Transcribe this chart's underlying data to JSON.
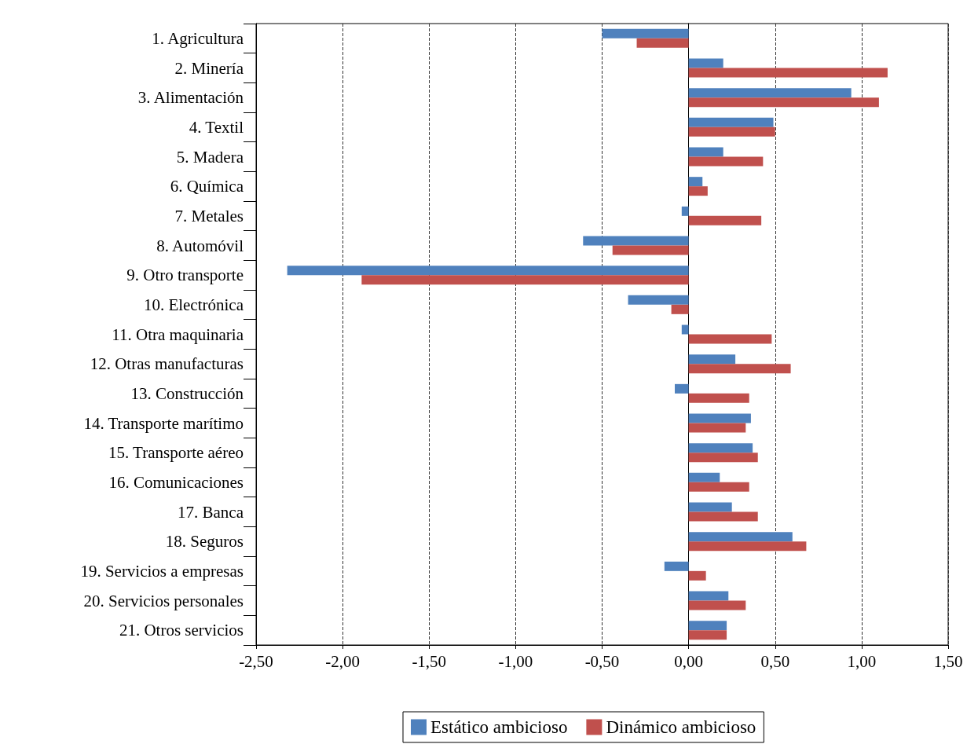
{
  "chart_data": {
    "type": "bar",
    "orientation": "horizontal",
    "categories": [
      "1. Agricultura",
      "2. Minería",
      "3. Alimentación",
      "4. Textil",
      "5. Madera",
      "6. Química",
      "7. Metales",
      "8. Automóvil",
      "9. Otro transporte",
      "10. Electrónica",
      "11. Otra maquinaria",
      "12. Otras manufacturas",
      "13. Construcción",
      "14. Transporte marítimo",
      "15. Transporte aéreo",
      "16. Comunicaciones",
      "17. Banca",
      "18. Seguros",
      "19. Servicios a empresas",
      "20. Servicios personales",
      "21. Otros servicios"
    ],
    "series": [
      {
        "name": "Estático ambicioso",
        "color": "#4f81bd",
        "values": [
          -0.5,
          0.2,
          0.94,
          0.49,
          0.2,
          0.08,
          -0.04,
          -0.61,
          -2.32,
          -0.35,
          -0.04,
          0.27,
          -0.08,
          0.36,
          0.37,
          0.18,
          0.25,
          0.6,
          -0.14,
          0.23,
          0.22
        ]
      },
      {
        "name": "Dinámico ambicioso",
        "color": "#c0504d",
        "values": [
          -0.3,
          1.15,
          1.1,
          0.5,
          0.43,
          0.11,
          0.42,
          -0.44,
          -1.89,
          -0.1,
          0.48,
          0.59,
          0.35,
          0.33,
          0.4,
          0.35,
          0.4,
          0.68,
          0.1,
          0.33,
          0.22
        ]
      }
    ],
    "xlim": [
      -2.5,
      1.5
    ],
    "xticks": [
      {
        "value": -2.5,
        "label": "-2,50"
      },
      {
        "value": -2,
        "label": "-2,00"
      },
      {
        "value": -1.5,
        "label": "-1,50"
      },
      {
        "value": -1,
        "label": "-1,00"
      },
      {
        "value": -0.5,
        "label": "-0,50"
      },
      {
        "value": 0,
        "label": "0,00"
      },
      {
        "value": 0.5,
        "label": "0,50"
      },
      {
        "value": 1,
        "label": "1,00"
      },
      {
        "value": 1.5,
        "label": "1,50"
      }
    ],
    "grid": "x",
    "legend": "bottom"
  }
}
